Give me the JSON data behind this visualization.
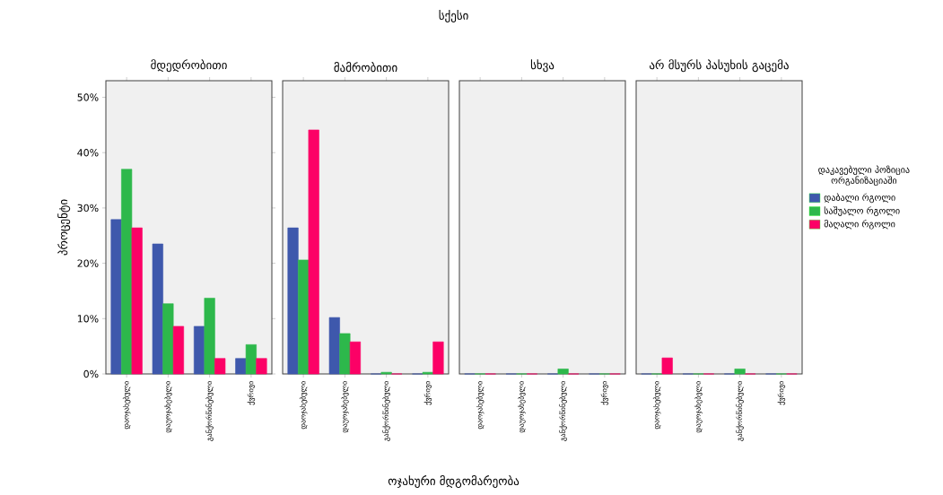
{
  "chart_data": [
    {
      "type": "bar",
      "title": "მდედრობითი",
      "ylabel": "პროცენტი",
      "categories": [
        "დაოჯახებული",
        "დაუოჯახებელი",
        "განქორწინებული",
        "ქვრივი"
      ],
      "series": [
        {
          "color": "#3e58ac",
          "values": [
            27.9,
            23.5,
            8.6,
            2.8
          ]
        },
        {
          "color": "#2db84b",
          "values": [
            37.0,
            12.7,
            13.7,
            5.3
          ]
        },
        {
          "color": "#fc0166",
          "values": [
            26.4,
            8.6,
            2.8,
            2.8
          ]
        }
      ],
      "ylim": [
        0,
        53
      ],
      "yticks": [
        {
          "value": 0,
          "label": "0%"
        },
        {
          "value": 10,
          "label": "10%"
        },
        {
          "value": 20,
          "label": "20%"
        },
        {
          "value": 30,
          "label": "30%"
        },
        {
          "value": 40,
          "label": "40%"
        },
        {
          "value": 50,
          "label": "50%"
        }
      ]
    },
    {
      "type": "bar",
      "title": "მამრობითი",
      "tick_labels": "x",
      "xlabel": "ოჯახური მდგომარეობა",
      "annotations": [
        "სქესი"
      ],
      "categories": [
        "დაოჯახებული",
        "დაუოჯახებელი",
        "განქორწინებული",
        "ქვრივი"
      ],
      "series": [
        {
          "color": "#3e58ac",
          "values": [
            26.4,
            10.2,
            0,
            0
          ]
        },
        {
          "color": "#2db84b",
          "values": [
            20.6,
            7.3,
            0.3,
            0.3
          ]
        },
        {
          "color": "#fc0166",
          "values": [
            44.1,
            5.8,
            0,
            5.8
          ]
        }
      ],
      "ylim": [
        0,
        53
      ]
    },
    {
      "type": "bar",
      "title": "სხვა",
      "tick_labels": "x",
      "categories": [
        "დაოჯახებული",
        "დაუოჯახებელი",
        "განქორწინებული",
        "ქვრივი"
      ],
      "series": [
        {
          "color": "#3e58ac",
          "values": [
            0,
            0,
            0,
            0
          ]
        },
        {
          "color": "#2db84b",
          "values": [
            0,
            0,
            0.9,
            0
          ]
        },
        {
          "color": "#fc0166",
          "values": [
            0,
            0,
            0,
            0
          ]
        }
      ],
      "ylim": [
        0,
        53
      ]
    },
    {
      "type": "bar",
      "title": "არ მსურს პასუხის გაცემა",
      "tick_labels": "x",
      "legend": "right",
      "legend_title": "დაკავებული პოზიცია ორგანიზაციაში",
      "categories": [
        "დაოჯახებული",
        "დაუოჯახებელი",
        "განქორწინებული",
        "ქვრივი"
      ],
      "series": [
        {
          "name": "დაბალი რგოლი",
          "color": "#3e58ac",
          "values": [
            0,
            0,
            0,
            0
          ]
        },
        {
          "name": "საშუალო რგოლი",
          "color": "#2db84b",
          "values": [
            0,
            0,
            0.9,
            0
          ]
        },
        {
          "name": "მაღალი რგოლი",
          "color": "#fc0166",
          "values": [
            2.9,
            0,
            0,
            0
          ]
        }
      ],
      "ylim": [
        0,
        53
      ]
    }
  ]
}
